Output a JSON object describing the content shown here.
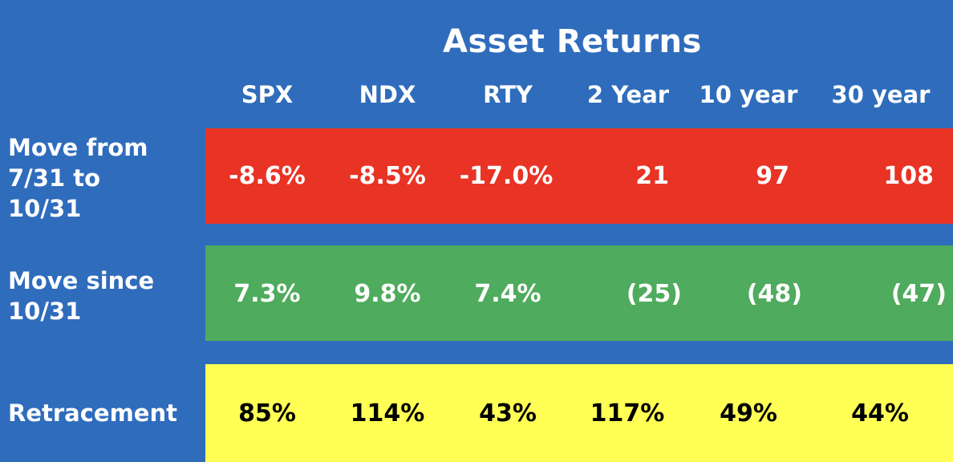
{
  "chart_data": {
    "type": "table",
    "title": "Asset Returns",
    "columns": [
      "SPX",
      "NDX",
      "RTY",
      "2 Year",
      "10 year",
      "30 year"
    ],
    "rows": [
      {
        "label": "Move from\n7/31 to\n10/31",
        "cells": [
          "-8.6%",
          "-8.5%",
          "-17.0%",
          "21",
          "97",
          "108"
        ],
        "values": [
          -8.6,
          -8.5,
          -17.0,
          21,
          97,
          108
        ],
        "color": "#e93324"
      },
      {
        "label": "Move since\n10/31",
        "cells": [
          "7.3%",
          "9.8%",
          "7.4%",
          "(25)",
          "(48)",
          "(47)"
        ],
        "values": [
          7.3,
          9.8,
          7.4,
          -25,
          -48,
          -47
        ],
        "color": "#4fab5d"
      },
      {
        "label": "Retracement",
        "cells": [
          "85%",
          "114%",
          "43%",
          "117%",
          "49%",
          "44%"
        ],
        "values": [
          85,
          114,
          43,
          117,
          49,
          44
        ],
        "color": "#ffff55"
      }
    ]
  },
  "colors": {
    "background": "#2f6cbc",
    "header_text": "#ffffff",
    "light_text": "#ffffff",
    "dark_text": "#000000"
  }
}
